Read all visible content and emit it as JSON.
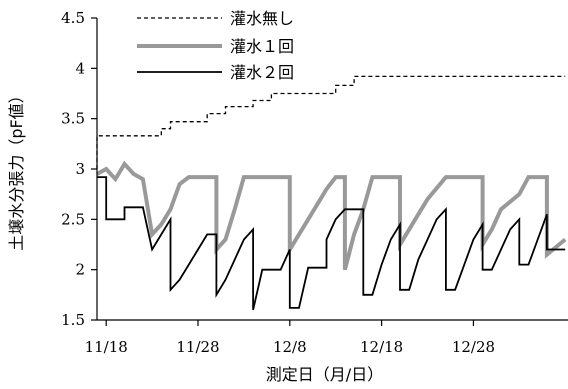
{
  "chart_data": {
    "type": "line",
    "xlabel": "測定日（月/日）",
    "ylabel": "土壌水分張力（pF値）",
    "x_range": [
      "11/17",
      "1/7"
    ],
    "ylim": [
      1.5,
      4.5
    ],
    "y_ticks": [
      "1.5",
      "2",
      "2.5",
      "3",
      "3.5",
      "4",
      "4.5"
    ],
    "x_ticks": [
      "11/18",
      "11/28",
      "12/8",
      "12/18",
      "12/28"
    ],
    "legend_position": "top-left",
    "series": [
      {
        "name": "灌水無し",
        "color": "#000000",
        "style": "dashed",
        "points": [
          [
            "11/17",
            3.0
          ],
          [
            "11/17",
            3.33
          ],
          [
            "11/24",
            3.33
          ],
          [
            "11/24",
            3.4
          ],
          [
            "11/25",
            3.4
          ],
          [
            "11/25",
            3.47
          ],
          [
            "11/29",
            3.47
          ],
          [
            "11/29",
            3.55
          ],
          [
            "12/1",
            3.55
          ],
          [
            "12/1",
            3.62
          ],
          [
            "12/4",
            3.62
          ],
          [
            "12/4",
            3.68
          ],
          [
            "12/6",
            3.68
          ],
          [
            "12/6",
            3.75
          ],
          [
            "12/13",
            3.75
          ],
          [
            "12/13",
            3.83
          ],
          [
            "12/15",
            3.83
          ],
          [
            "12/15",
            3.92
          ],
          [
            "1/7",
            3.92
          ]
        ]
      },
      {
        "name": "灌水１回",
        "color": "#999999",
        "style": "solid-thick",
        "points": [
          [
            "11/17",
            2.95
          ],
          [
            "11/18",
            3.0
          ],
          [
            "11/19",
            2.9
          ],
          [
            "11/20",
            3.05
          ],
          [
            "11/21",
            2.95
          ],
          [
            "11/22",
            2.9
          ],
          [
            "11/23",
            2.35
          ],
          [
            "11/24",
            2.45
          ],
          [
            "11/25",
            2.6
          ],
          [
            "11/26",
            2.85
          ],
          [
            "11/27",
            2.92
          ],
          [
            "11/30",
            2.92
          ],
          [
            "11/30",
            2.2
          ],
          [
            "12/1",
            2.3
          ],
          [
            "12/2",
            2.6
          ],
          [
            "12/3",
            2.92
          ],
          [
            "12/8",
            2.92
          ],
          [
            "12/8",
            2.2
          ],
          [
            "12/9",
            2.35
          ],
          [
            "12/10",
            2.5
          ],
          [
            "12/11",
            2.65
          ],
          [
            "12/12",
            2.8
          ],
          [
            "12/13",
            2.92
          ],
          [
            "12/14",
            2.92
          ],
          [
            "12/14",
            2.0
          ],
          [
            "12/15",
            2.35
          ],
          [
            "12/16",
            2.6
          ],
          [
            "12/17",
            2.92
          ],
          [
            "12/20",
            2.92
          ],
          [
            "12/20",
            2.25
          ],
          [
            "12/21",
            2.4
          ],
          [
            "12/22",
            2.55
          ],
          [
            "12/23",
            2.7
          ],
          [
            "12/25",
            2.92
          ],
          [
            "12/29",
            2.92
          ],
          [
            "12/29",
            2.25
          ],
          [
            "12/30",
            2.4
          ],
          [
            "12/31",
            2.6
          ],
          [
            "1/2",
            2.75
          ],
          [
            "1/3",
            2.92
          ],
          [
            "1/5",
            2.92
          ],
          [
            "1/5",
            2.15
          ],
          [
            "1/7",
            2.3
          ]
        ]
      },
      {
        "name": "灌水２回",
        "color": "#000000",
        "style": "solid",
        "points": [
          [
            "11/17",
            2.92
          ],
          [
            "11/18",
            2.92
          ],
          [
            "11/18",
            2.5
          ],
          [
            "11/20",
            2.5
          ],
          [
            "11/20",
            2.62
          ],
          [
            "11/22",
            2.62
          ],
          [
            "11/23",
            2.2
          ],
          [
            "11/24",
            2.35
          ],
          [
            "11/25",
            2.5
          ],
          [
            "11/25",
            1.8
          ],
          [
            "11/26",
            1.9
          ],
          [
            "11/27",
            2.05
          ],
          [
            "11/28",
            2.2
          ],
          [
            "11/29",
            2.35
          ],
          [
            "11/30",
            2.35
          ],
          [
            "11/30",
            1.75
          ],
          [
            "12/1",
            1.9
          ],
          [
            "12/2",
            2.1
          ],
          [
            "12/3",
            2.3
          ],
          [
            "12/4",
            2.4
          ],
          [
            "12/4",
            1.6
          ],
          [
            "12/5",
            2.0
          ],
          [
            "12/7",
            2.0
          ],
          [
            "12/8",
            2.2
          ],
          [
            "12/8",
            1.62
          ],
          [
            "12/9",
            1.62
          ],
          [
            "12/10",
            2.02
          ],
          [
            "12/12",
            2.02
          ],
          [
            "12/12",
            2.3
          ],
          [
            "12/13",
            2.5
          ],
          [
            "12/14",
            2.6
          ],
          [
            "12/16",
            2.6
          ],
          [
            "12/16",
            1.75
          ],
          [
            "12/17",
            1.75
          ],
          [
            "12/18",
            2.05
          ],
          [
            "12/19",
            2.3
          ],
          [
            "12/20",
            2.45
          ],
          [
            "12/20",
            1.8
          ],
          [
            "12/21",
            1.8
          ],
          [
            "12/22",
            2.1
          ],
          [
            "12/23",
            2.3
          ],
          [
            "12/24",
            2.5
          ],
          [
            "12/25",
            2.6
          ],
          [
            "12/25",
            1.8
          ],
          [
            "12/26",
            1.8
          ],
          [
            "12/27",
            2.05
          ],
          [
            "12/28",
            2.3
          ],
          [
            "12/29",
            2.45
          ],
          [
            "12/29",
            2.0
          ],
          [
            "12/30",
            2.0
          ],
          [
            "12/31",
            2.2
          ],
          [
            "1/1",
            2.4
          ],
          [
            "1/2",
            2.5
          ],
          [
            "1/2",
            2.05
          ],
          [
            "1/3",
            2.05
          ],
          [
            "1/4",
            2.3
          ],
          [
            "1/5",
            2.55
          ],
          [
            "1/5",
            2.2
          ],
          [
            "1/7",
            2.2
          ]
        ]
      }
    ]
  }
}
